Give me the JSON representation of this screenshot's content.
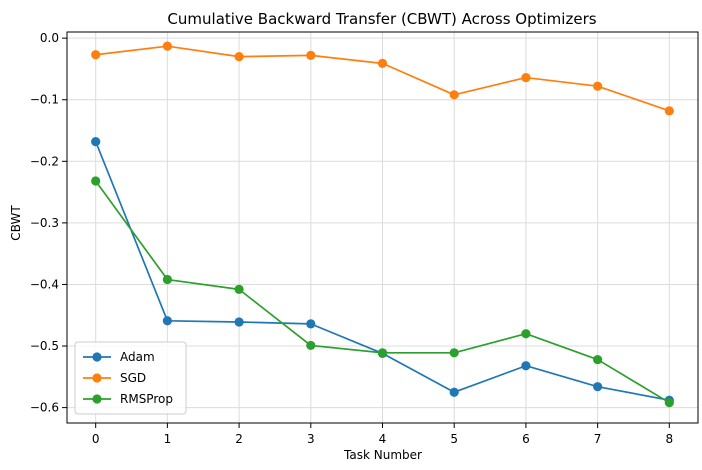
{
  "chart_data": {
    "type": "line",
    "title": "Cumulative Backward Transfer (CBWT) Across Optimizers",
    "xlabel": "Task Number",
    "ylabel": "CBWT",
    "x": [
      0,
      1,
      2,
      3,
      4,
      5,
      6,
      7,
      8
    ],
    "x_ticks": [
      "0",
      "1",
      "2",
      "3",
      "4",
      "5",
      "6",
      "7",
      "8"
    ],
    "y_ticks": [
      "0.0",
      "−0.1",
      "−0.2",
      "−0.3",
      "−0.4",
      "−0.5",
      "−0.6"
    ],
    "y_tick_values": [
      0.0,
      -0.1,
      -0.2,
      -0.3,
      -0.4,
      -0.5,
      -0.6
    ],
    "xlim": [
      -0.4,
      8.4
    ],
    "ylim": [
      -0.625,
      0.01
    ],
    "grid": true,
    "legend_position": "lower-left",
    "series": [
      {
        "name": "Adam",
        "color": "#1f77b4",
        "values": [
          -0.168,
          -0.459,
          -0.461,
          -0.464,
          -0.512,
          -0.575,
          -0.532,
          -0.566,
          -0.588
        ]
      },
      {
        "name": "SGD",
        "color": "#ff7f0e",
        "values": [
          -0.027,
          -0.013,
          -0.03,
          -0.028,
          -0.041,
          -0.092,
          -0.064,
          -0.078,
          -0.118
        ]
      },
      {
        "name": "RMSProp",
        "color": "#2ca02c",
        "values": [
          -0.232,
          -0.392,
          -0.408,
          -0.499,
          -0.511,
          -0.511,
          -0.48,
          -0.522,
          -0.592
        ]
      }
    ]
  }
}
